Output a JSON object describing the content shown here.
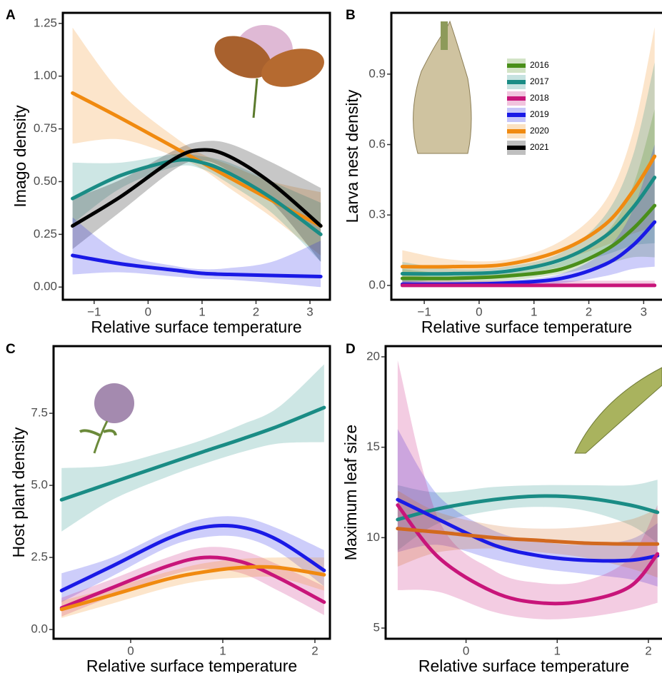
{
  "chart_data": [
    {
      "type": "line",
      "panel_label": "A",
      "xlabel": "Relative surface temperature",
      "ylabel": "Imago density",
      "xlim": [
        -1.58,
        3.37
      ],
      "ylim": [
        -0.06,
        1.3
      ],
      "xticks": [
        {
          "value": -1,
          "label": "−1"
        },
        0,
        1,
        2,
        3
      ],
      "yticks": [
        {
          "value": 0,
          "label": "0.00"
        },
        {
          "value": 0.25,
          "label": "0.25"
        },
        {
          "value": 0.5,
          "label": "0.50"
        },
        {
          "value": 0.75,
          "label": "0.75"
        },
        {
          "value": 1,
          "label": "1.00"
        },
        {
          "value": 1.25,
          "label": "1.25"
        }
      ],
      "x": [
        -1.4,
        -0.5,
        0.5,
        1.0,
        1.5,
        2.3,
        3.2
      ],
      "series": [
        {
          "color": "#f08a10",
          "values": [
            0.92,
            0.8,
            0.66,
            0.59,
            0.52,
            0.41,
            0.29
          ],
          "lower": [
            0.68,
            0.7,
            0.62,
            0.56,
            0.47,
            0.33,
            0.15
          ],
          "upper": [
            1.23,
            0.92,
            0.71,
            0.63,
            0.58,
            0.5,
            0.45
          ]
        },
        {
          "color": "#1a8c85",
          "values": [
            0.42,
            0.53,
            0.6,
            0.59,
            0.54,
            0.42,
            0.25
          ],
          "lower": [
            0.3,
            0.47,
            0.57,
            0.56,
            0.49,
            0.35,
            0.12
          ],
          "upper": [
            0.59,
            0.59,
            0.63,
            0.62,
            0.59,
            0.5,
            0.4
          ]
        },
        {
          "color": "#000000",
          "values": [
            0.29,
            0.43,
            0.61,
            0.65,
            0.62,
            0.49,
            0.29
          ],
          "lower": [
            0.18,
            0.36,
            0.56,
            0.6,
            0.55,
            0.4,
            0.12
          ],
          "upper": [
            0.42,
            0.51,
            0.65,
            0.69,
            0.68,
            0.59,
            0.47
          ]
        },
        {
          "color": "#1a1ae6",
          "values": [
            0.15,
            0.11,
            0.08,
            0.065,
            0.06,
            0.055,
            0.05
          ],
          "lower": [
            0.06,
            0.07,
            0.05,
            0.04,
            0.035,
            0.02,
            0.0
          ],
          "upper": [
            0.33,
            0.16,
            0.1,
            0.085,
            0.09,
            0.12,
            0.22
          ]
        }
      ]
    },
    {
      "type": "line",
      "panel_label": "B",
      "xlabel": "Relative surface temperature",
      "ylabel": "Larva nest density",
      "xlim": [
        -1.6,
        3.36
      ],
      "ylim": [
        -0.061,
        1.161
      ],
      "xticks": [
        {
          "value": -1,
          "label": "−1"
        },
        0,
        1,
        2,
        3
      ],
      "yticks": [
        {
          "value": 0,
          "label": "0.0"
        },
        0.3,
        0.6,
        0.9
      ],
      "legend_position": "upper center",
      "legend": [
        {
          "name": "2016",
          "color": "#4a8f1a"
        },
        {
          "name": "2017",
          "color": "#1a8c85"
        },
        {
          "name": "2018",
          "color": "#c8157a"
        },
        {
          "name": "2019",
          "color": "#1a1ae6"
        },
        {
          "name": "2020",
          "color": "#f08a10"
        },
        {
          "name": "2021",
          "color": "#000000"
        }
      ],
      "x": [
        -1.4,
        -0.5,
        0.5,
        1.5,
        2.3,
        2.8,
        3.2
      ],
      "series": [
        {
          "color": "#f08a10",
          "values": [
            0.08,
            0.08,
            0.09,
            0.15,
            0.26,
            0.4,
            0.55
          ],
          "lower": [
            0.03,
            0.05,
            0.07,
            0.11,
            0.17,
            0.22,
            0.25
          ],
          "upper": [
            0.15,
            0.11,
            0.11,
            0.19,
            0.36,
            0.65,
            1.1
          ]
        },
        {
          "color": "#1a8c85",
          "values": [
            0.05,
            0.05,
            0.06,
            0.11,
            0.21,
            0.33,
            0.46
          ],
          "lower": [
            0.01,
            0.03,
            0.04,
            0.08,
            0.13,
            0.17,
            0.18
          ],
          "upper": [
            0.1,
            0.07,
            0.08,
            0.14,
            0.3,
            0.55,
            0.95
          ]
        },
        {
          "color": "#4a8f1a",
          "values": [
            0.03,
            0.03,
            0.04,
            0.07,
            0.15,
            0.24,
            0.34
          ],
          "lower": [
            0.0,
            0.01,
            0.02,
            0.05,
            0.09,
            0.12,
            0.12
          ],
          "upper": [
            0.07,
            0.05,
            0.06,
            0.1,
            0.22,
            0.42,
            0.75
          ]
        },
        {
          "color": "#1a1ae6",
          "values": [
            0.005,
            0.005,
            0.01,
            0.03,
            0.09,
            0.17,
            0.27
          ],
          "lower": [
            0,
            0,
            0,
            0.01,
            0.04,
            0.07,
            0.08
          ],
          "upper": [
            0.02,
            0.015,
            0.02,
            0.05,
            0.15,
            0.32,
            0.6
          ]
        },
        {
          "color": "#c8157a",
          "values": [
            0,
            0,
            0,
            0,
            0,
            0,
            0
          ],
          "lower": [
            0,
            0,
            0,
            0,
            0,
            0,
            0
          ],
          "upper": [
            0.02,
            0.02,
            0.02,
            0.02,
            0.02,
            0.02,
            0.02
          ]
        }
      ]
    },
    {
      "type": "line",
      "panel_label": "C",
      "xlabel": "Relative surface temperature",
      "ylabel": "Host plant density",
      "xlim": [
        -0.837,
        2.163
      ],
      "ylim": [
        -0.32,
        9.83
      ],
      "xticks": [
        0,
        1,
        2
      ],
      "yticks": [
        {
          "value": 0,
          "label": "0.0"
        },
        2.5,
        {
          "value": 5,
          "label": "5.0"
        },
        7.5
      ],
      "x": [
        -0.75,
        -0.2,
        0.4,
        0.8,
        1.2,
        1.6,
        2.1
      ],
      "series": [
        {
          "color": "#1a8c85",
          "values": [
            4.5,
            5.1,
            5.75,
            6.18,
            6.6,
            7.05,
            7.7
          ],
          "lower": [
            3.4,
            4.5,
            5.3,
            5.75,
            6.15,
            6.45,
            6.5
          ],
          "upper": [
            5.6,
            5.7,
            6.2,
            6.6,
            7.1,
            7.7,
            9.2
          ]
        },
        {
          "color": "#1a1ae6",
          "values": [
            1.35,
            2.2,
            3.15,
            3.55,
            3.55,
            3.1,
            2.05
          ],
          "lower": [
            0.95,
            1.85,
            2.85,
            3.2,
            3.2,
            2.7,
            1.5
          ],
          "upper": [
            1.95,
            2.5,
            3.4,
            3.85,
            3.9,
            3.5,
            2.75
          ]
        },
        {
          "color": "#c8157a",
          "values": [
            0.75,
            1.45,
            2.2,
            2.5,
            2.35,
            1.8,
            0.95
          ],
          "lower": [
            0.45,
            1.15,
            1.85,
            2.1,
            1.95,
            1.35,
            0.5
          ],
          "upper": [
            1.1,
            1.75,
            2.5,
            2.85,
            2.75,
            2.25,
            1.5
          ]
        },
        {
          "color": "#f08a10",
          "values": [
            0.7,
            1.2,
            1.75,
            2.0,
            2.15,
            2.15,
            1.9
          ],
          "lower": [
            0.4,
            0.9,
            1.45,
            1.7,
            1.8,
            1.8,
            1.35
          ],
          "upper": [
            1.0,
            1.45,
            2.0,
            2.3,
            2.45,
            2.5,
            2.5
          ]
        }
      ]
    },
    {
      "type": "line",
      "panel_label": "D",
      "xlabel": "Relative surface temperature",
      "ylabel": "Maximum leaf size",
      "xlim": [
        -0.882,
        2.165
      ],
      "ylim": [
        4.41,
        20.59
      ],
      "xticks": [
        0,
        1,
        2
      ],
      "yticks": [
        5,
        10,
        15,
        20
      ],
      "x": [
        -0.75,
        -0.3,
        0.3,
        0.8,
        1.3,
        1.8,
        2.1
      ],
      "series": [
        {
          "color": "#1a8c85",
          "values": [
            11.0,
            11.6,
            12.1,
            12.3,
            12.2,
            11.8,
            11.4
          ],
          "lower": [
            9.3,
            10.8,
            11.5,
            11.7,
            11.5,
            10.7,
            9.7
          ],
          "upper": [
            12.9,
            12.5,
            12.8,
            12.9,
            12.9,
            12.9,
            13.2
          ]
        },
        {
          "color": "#1a1ae6",
          "values": [
            12.1,
            11.0,
            9.6,
            9.0,
            8.75,
            8.75,
            9.0
          ],
          "lower": [
            9.2,
            9.6,
            8.8,
            8.3,
            8.0,
            7.7,
            7.3
          ],
          "upper": [
            16.0,
            12.3,
            10.4,
            9.8,
            9.6,
            9.9,
            10.8
          ]
        },
        {
          "color": "#c8157a",
          "values": [
            11.8,
            8.9,
            7.0,
            6.4,
            6.5,
            7.3,
            9.1
          ],
          "lower": [
            7.1,
            7.0,
            5.9,
            5.5,
            5.6,
            6.0,
            6.4
          ],
          "upper": [
            19.8,
            11.0,
            8.2,
            7.5,
            7.6,
            8.9,
            11.8
          ]
        },
        {
          "color": "#d2691e",
          "values": [
            10.5,
            10.3,
            10.0,
            9.85,
            9.7,
            9.65,
            9.65
          ],
          "lower": [
            8.4,
            9.2,
            9.4,
            9.2,
            8.9,
            8.3,
            7.8
          ],
          "upper": [
            12.6,
            11.4,
            10.7,
            10.5,
            10.6,
            11.0,
            11.6
          ]
        }
      ]
    }
  ]
}
